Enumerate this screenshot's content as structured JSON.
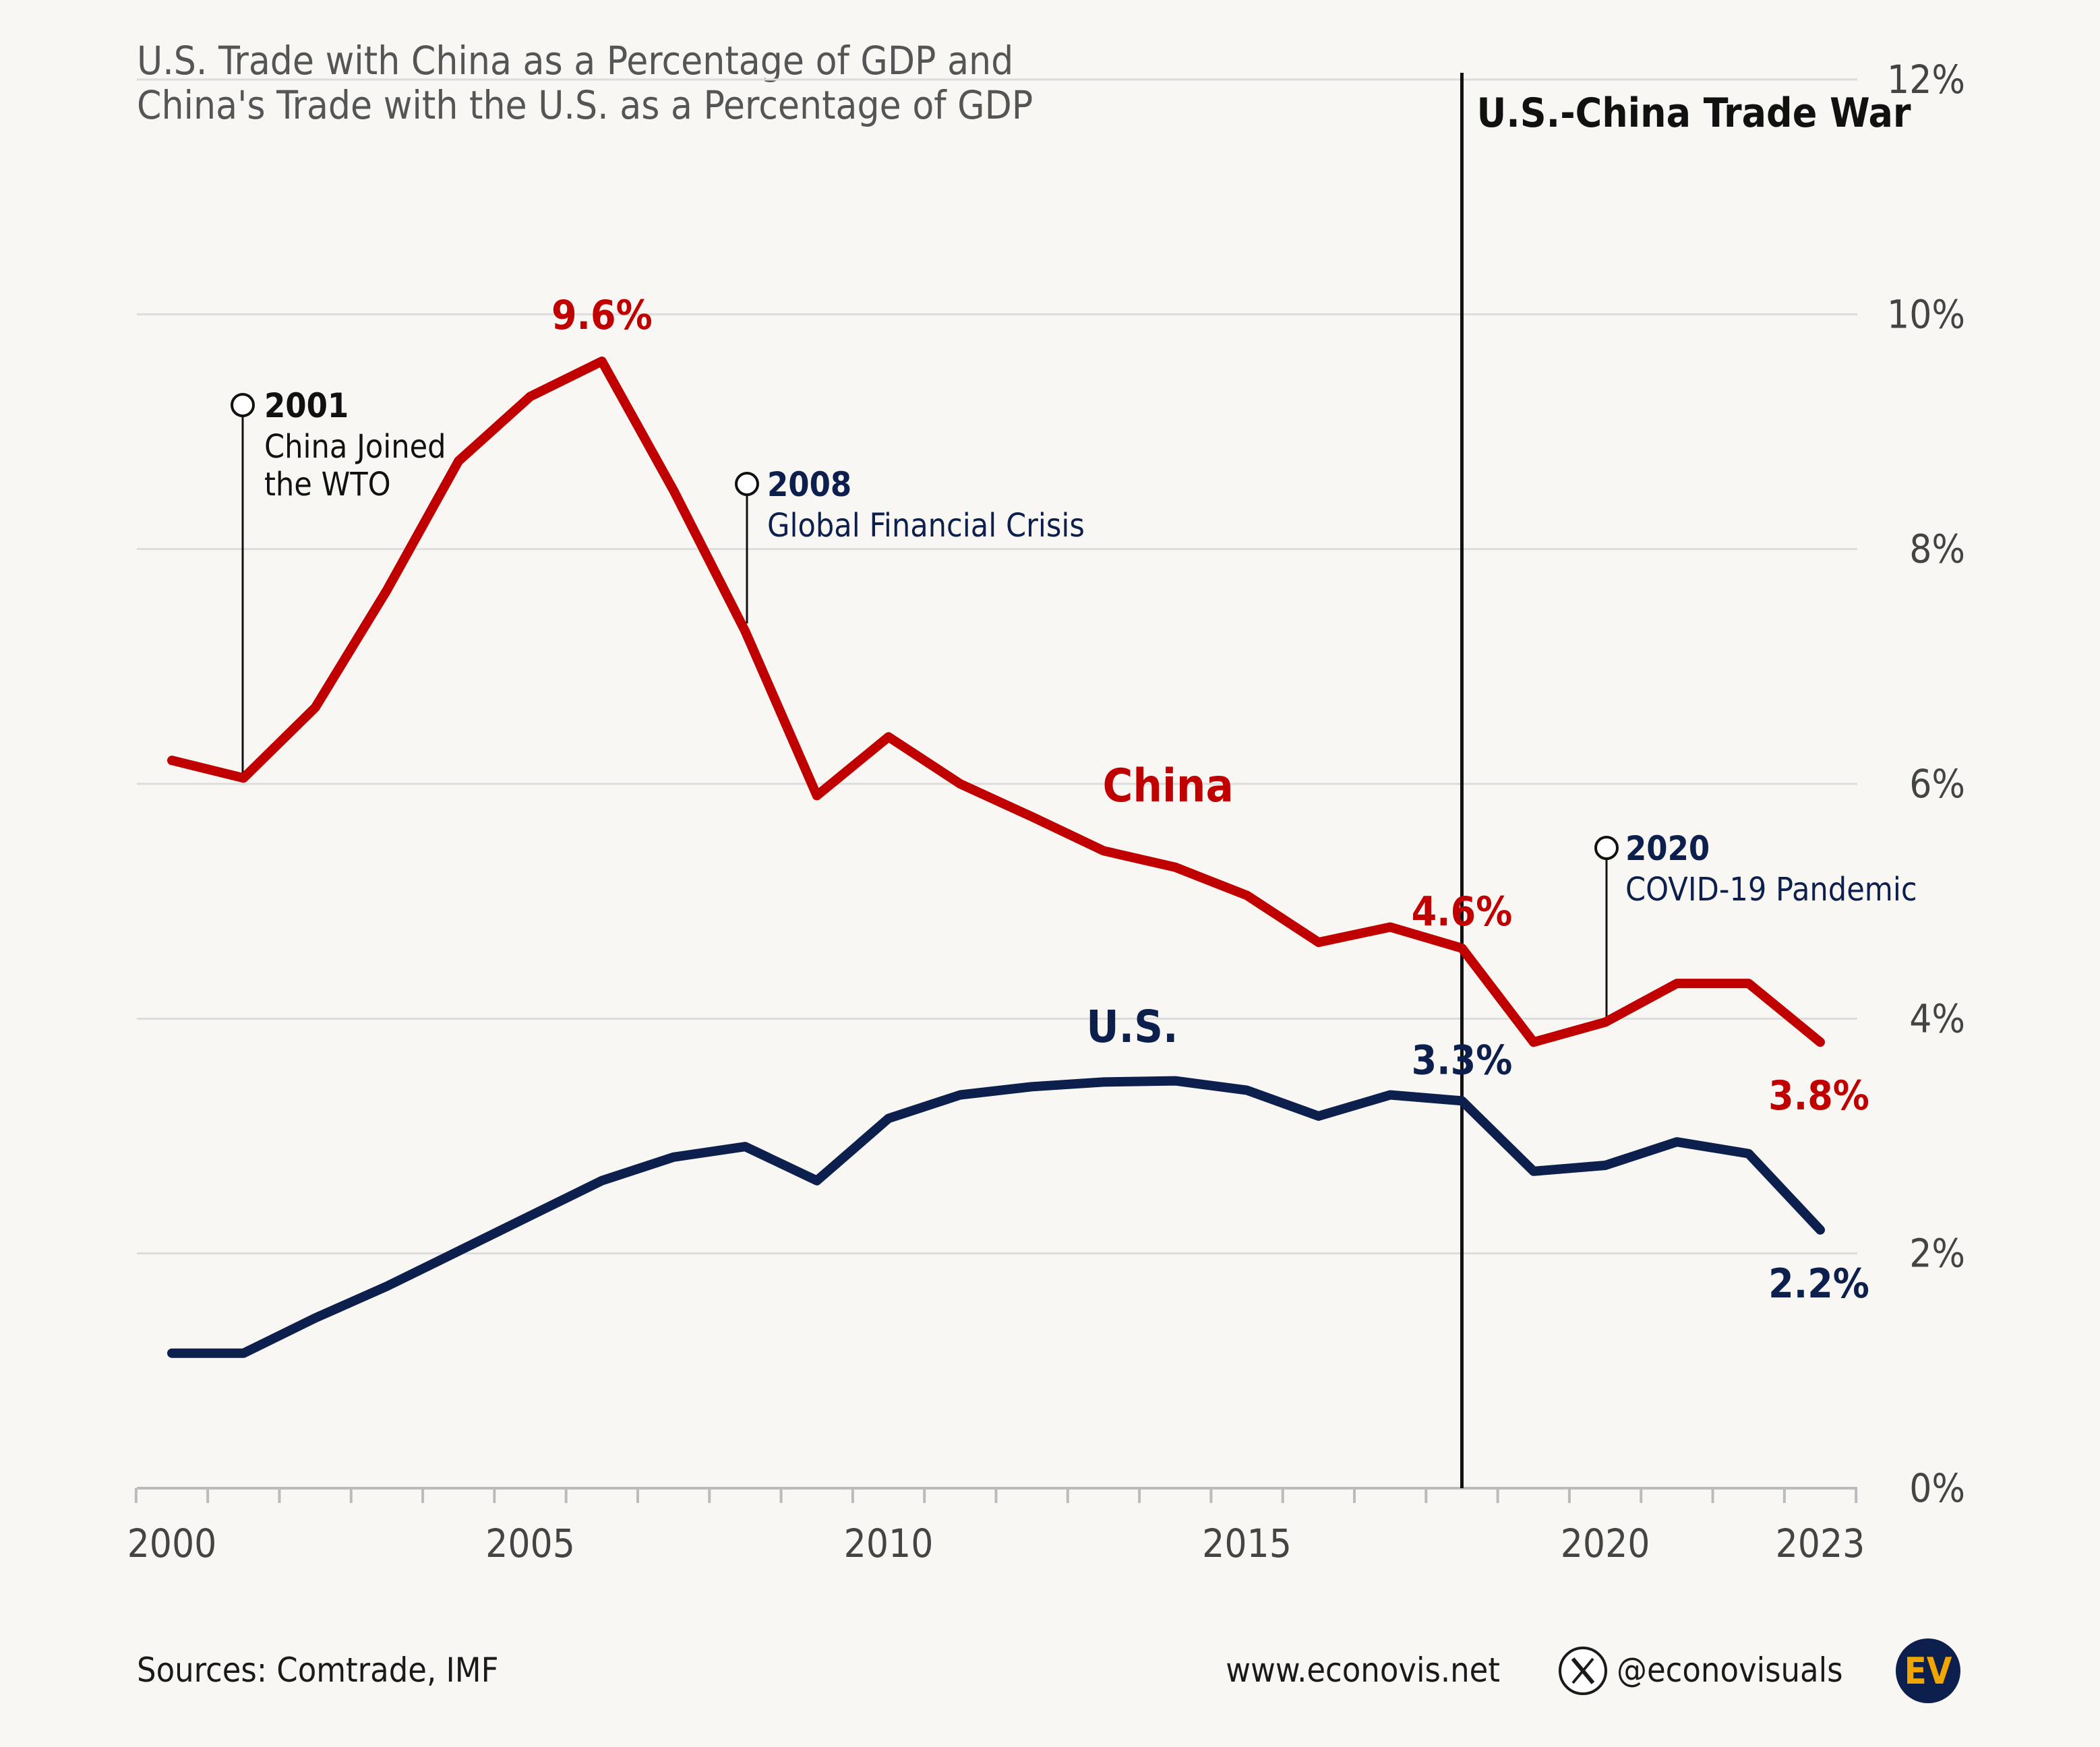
{
  "title": {
    "line1": "U.S. Trade with China as a Percentage of GDP and",
    "line2": "China's Trade with the U.S. as a Percentage of GDP"
  },
  "chart_data": {
    "type": "line",
    "x": [
      2000,
      2001,
      2002,
      2003,
      2004,
      2005,
      2006,
      2007,
      2008,
      2009,
      2010,
      2011,
      2012,
      2013,
      2014,
      2015,
      2016,
      2017,
      2018,
      2019,
      2020,
      2021,
      2022,
      2023
    ],
    "series": [
      {
        "name": "China",
        "color": "#c00000",
        "values": [
          6.2,
          6.05,
          6.65,
          7.65,
          8.75,
          9.3,
          9.6,
          8.5,
          7.3,
          5.9,
          6.4,
          6.0,
          5.72,
          5.43,
          5.29,
          5.05,
          4.65,
          4.78,
          4.6,
          3.8,
          3.97,
          4.3,
          4.3,
          3.8
        ]
      },
      {
        "name": "U.S.",
        "color": "#0d1f4d",
        "values": [
          1.15,
          1.15,
          1.45,
          1.72,
          2.02,
          2.32,
          2.62,
          2.82,
          2.91,
          2.62,
          3.15,
          3.35,
          3.42,
          3.46,
          3.47,
          3.39,
          3.17,
          3.35,
          3.3,
          2.7,
          2.75,
          2.95,
          2.85,
          2.2
        ]
      }
    ],
    "xlim": [
      2000,
      2023
    ],
    "ylim": [
      0,
      12
    ],
    "x_tick_labels": [
      "2000",
      "2005",
      "2010",
      "2015",
      "2020",
      "2023"
    ],
    "y_tick_labels": [
      "0%",
      "2%",
      "4%",
      "6%",
      "8%",
      "10%",
      "12%"
    ],
    "grid": true,
    "data_labels": [
      {
        "series": "China",
        "x": 2006,
        "y": 9.6,
        "text": "9.6%"
      },
      {
        "series": "China",
        "x": 2018,
        "y": 4.6,
        "text": "4.6%"
      },
      {
        "series": "China",
        "x": 2023,
        "y": 3.8,
        "text": "3.8%"
      },
      {
        "series": "U.S.",
        "x": 2018,
        "y": 3.3,
        "text": "3.3%"
      },
      {
        "series": "U.S.",
        "x": 2023,
        "y": 2.2,
        "text": "2.2%"
      }
    ],
    "series_labels": {
      "china": "China",
      "us": "U.S."
    },
    "trade_war": {
      "x": 2018,
      "label": "U.S.-China Trade War"
    },
    "annotations": [
      {
        "year": "2001",
        "text1": "China Joined",
        "text2": "the WTO",
        "color": "#111111"
      },
      {
        "year": "2008",
        "text1": "Global Financial Crisis",
        "text2": "",
        "color": "#0d1f4d"
      },
      {
        "year": "2020",
        "text1": "COVID-19 Pandemic",
        "text2": "",
        "color": "#0d1f4d"
      }
    ]
  },
  "footer": {
    "sources": "Sources: Comtrade, IMF",
    "website": "www.econovis.net",
    "handle": "@econovisuals",
    "x_icon": "x-logo-icon",
    "logo_text": "EV"
  }
}
